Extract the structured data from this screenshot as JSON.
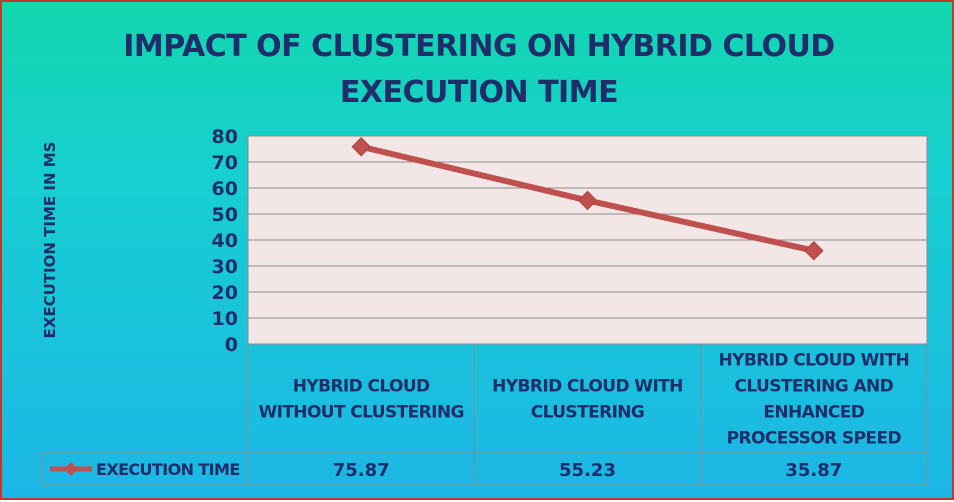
{
  "chart_data": {
    "type": "line",
    "title": [
      "IMPACT OF CLUSTERING ON HYBRID CLOUD",
      "EXECUTION TIME"
    ],
    "xlabel": "",
    "ylabel": "EXECUTION TIME IN MS",
    "ylim": [
      0,
      80
    ],
    "yticks": [
      "0",
      "10",
      "20",
      "30",
      "40",
      "50",
      "60",
      "70",
      "80"
    ],
    "grid": true,
    "categories": [
      [
        "HYBRID CLOUD",
        "WITHOUT CLUSTERING"
      ],
      [
        "HYBRID CLOUD WITH",
        "CLUSTERING"
      ],
      [
        "HYBRID CLOUD WITH",
        "CLUSTERING AND",
        "ENHANCED",
        "PROCESSOR SPEED"
      ]
    ],
    "series": [
      {
        "name": "EXECUTION TIME",
        "values": [
          75.87,
          55.23,
          35.87
        ],
        "value_labels": [
          "75.87",
          "55.23",
          "35.87"
        ]
      }
    ],
    "data_table": true,
    "colors": {
      "series": "#c0504d",
      "plot_bg": "#f2e6e6",
      "text": "#1f2d6b",
      "grid": "#8c8c8c",
      "frame_border": "#c0392b",
      "bg_top": "#12d6ae",
      "bg_bottom": "#1cb6e6"
    }
  }
}
